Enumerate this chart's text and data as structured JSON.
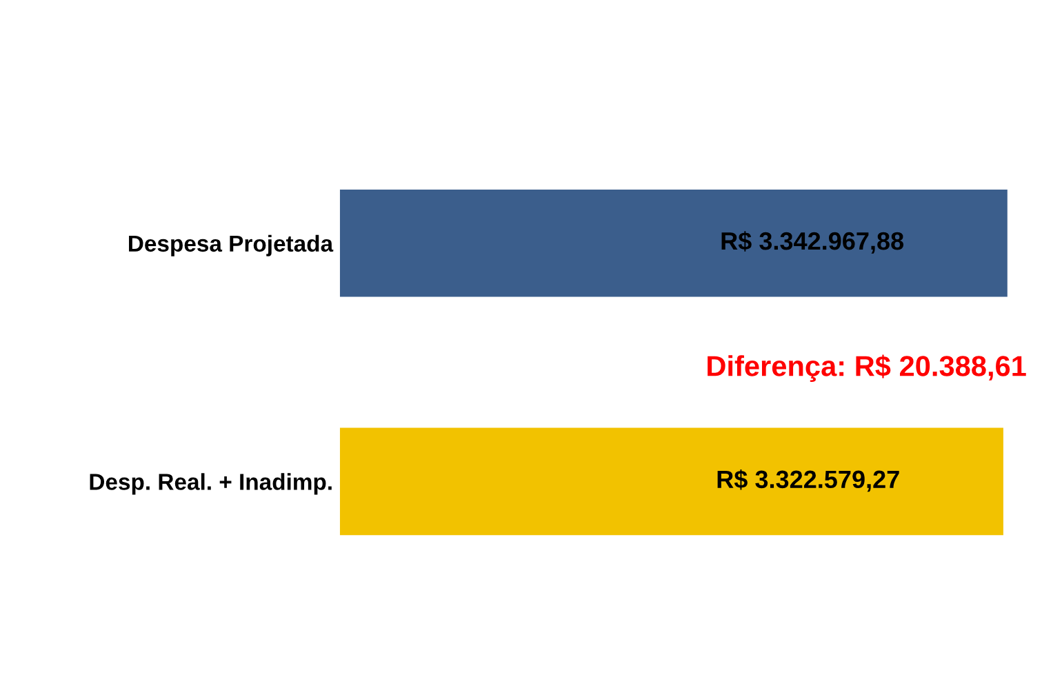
{
  "chart_data": {
    "type": "bar",
    "orientation": "horizontal",
    "categories": [
      "Despesa Projetada",
      "Desp. Real. + Inadimp."
    ],
    "values": [
      3342967.88,
      3322579.27
    ],
    "colors": [
      "#3b5e8c",
      "#f2c200"
    ],
    "value_labels": [
      "R$ 3.342.967,88",
      "R$ 3.322.579,27"
    ],
    "annotations": [
      "Diferença: R$ 20.388,61"
    ],
    "tick_labels": "y",
    "grid": false,
    "legend": false
  }
}
